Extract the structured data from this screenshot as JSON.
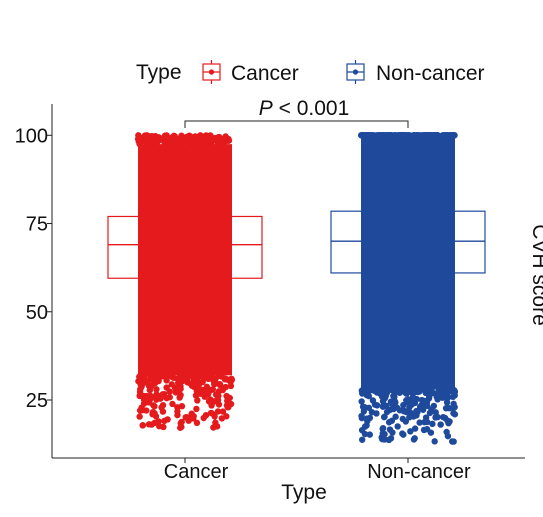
{
  "chart_data": {
    "type": "boxplot",
    "xlabel": "Type",
    "ylabel": "CVH score",
    "ylim": [
      8,
      110
    ],
    "yticks": [
      25,
      50,
      75,
      100
    ],
    "categories": [
      "Cancer",
      "Non-cancer"
    ],
    "legend": {
      "title": "Type",
      "placement": "top",
      "entries": [
        "Cancer",
        "Non-cancer"
      ]
    },
    "series": [
      {
        "name": "Cancer",
        "color": "#e41a1c",
        "box": {
          "q1": 59.5,
          "median": 69,
          "q3": 77
        },
        "points": {
          "min": 17,
          "max": 100,
          "dense_min": 32,
          "dense_max": 97.5
        }
      },
      {
        "name": "Non-cancer",
        "color": "#1f4a9c",
        "box": {
          "q1": 61,
          "median": 70,
          "q3": 78.5
        },
        "points": {
          "min": 13,
          "max": 100,
          "dense_min": 28,
          "dense_max": 100
        }
      }
    ],
    "annotation": {
      "italic": "P",
      "text": " < 0.001"
    },
    "grid": false
  }
}
